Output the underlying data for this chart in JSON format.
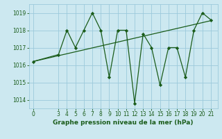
{
  "x": [
    0,
    3,
    4,
    5,
    6,
    7,
    8,
    9,
    10,
    11,
    12,
    13,
    14,
    15,
    16,
    17,
    18,
    19,
    20,
    21
  ],
  "y": [
    1016.2,
    1016.6,
    1018.0,
    1017.0,
    1018.0,
    1019.0,
    1018.0,
    1015.3,
    1018.0,
    1018.0,
    1013.8,
    1017.8,
    1017.0,
    1014.85,
    1017.0,
    1017.0,
    1015.3,
    1018.0,
    1019.0,
    1018.6
  ],
  "trend_x": [
    0,
    21
  ],
  "trend_y": [
    1016.2,
    1018.55
  ],
  "line_color": "#1a5c1a",
  "bg_color": "#cce8f0",
  "grid_color": "#9bcadb",
  "xlabel": "Graphe pression niveau de la mer (hPa)",
  "ylim": [
    1013.5,
    1019.5
  ],
  "xlim": [
    -0.5,
    21.8
  ],
  "yticks": [
    1014,
    1015,
    1016,
    1017,
    1018,
    1019
  ],
  "xticks": [
    0,
    3,
    4,
    5,
    6,
    7,
    8,
    9,
    10,
    11,
    12,
    13,
    14,
    15,
    16,
    17,
    18,
    19,
    20,
    21
  ],
  "marker": "D",
  "markersize": 2.2,
  "linewidth": 0.9,
  "xlabel_fontsize": 6.5,
  "tick_fontsize": 5.5
}
